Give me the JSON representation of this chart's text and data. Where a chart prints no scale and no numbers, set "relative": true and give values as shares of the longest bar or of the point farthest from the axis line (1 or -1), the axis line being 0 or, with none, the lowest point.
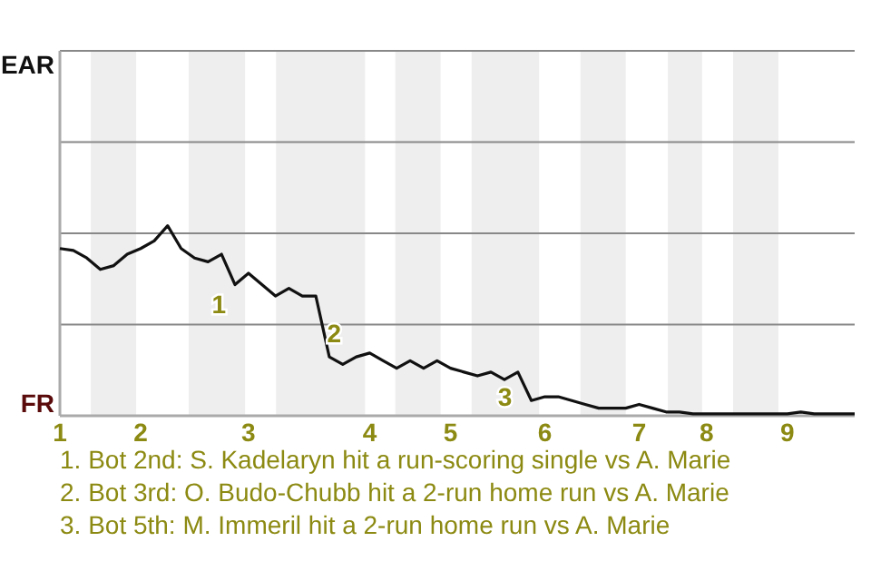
{
  "chart_data": {
    "type": "line",
    "relative": true,
    "marker": "none",
    "line_style": "solid",
    "categories": [
      "1",
      null,
      null,
      null,
      null,
      null,
      "2",
      null,
      null,
      null,
      null,
      null,
      null,
      null,
      "3",
      null,
      null,
      null,
      null,
      null,
      null,
      null,
      null,
      "4",
      null,
      null,
      null,
      null,
      null,
      "5",
      null,
      null,
      null,
      null,
      null,
      null,
      "6",
      null,
      null,
      null,
      null,
      null,
      null,
      "7",
      null,
      null,
      null,
      null,
      "8",
      null,
      null,
      null,
      null,
      null,
      "9",
      null,
      null,
      null,
      null,
      null
    ],
    "series": [
      {
        "color": "#111111",
        "values": [
          0.88,
          0.87,
          0.83,
          0.77,
          0.79,
          0.85,
          0.88,
          0.92,
          1,
          0.88,
          0.83,
          0.81,
          0.85,
          0.69,
          0.75,
          0.69,
          0.63,
          0.67,
          0.63,
          0.63,
          0.31,
          0.27,
          0.31,
          0.33,
          0.29,
          0.25,
          0.29,
          0.25,
          0.29,
          0.25,
          0.23,
          0.21,
          0.23,
          0.19,
          0.23,
          0.08,
          0.1,
          0.1,
          0.08,
          0.06,
          0.04,
          0.04,
          0.04,
          0.06,
          0.04,
          0.02,
          0.02,
          0.01,
          0.01,
          0.01,
          0.01,
          0.01,
          0.01,
          0.01,
          0.01,
          0.02,
          0.01,
          0.01,
          0.01,
          0.01
        ]
      }
    ],
    "ref_lines": [
      {
        "axis": "y",
        "value": 0.48,
        "color": "#888888"
      },
      {
        "axis": "y",
        "value": 0.96,
        "color": "#888888"
      },
      {
        "axis": "y",
        "value": 1.44,
        "color": "#888888"
      },
      {
        "axis": "y",
        "value": 1.92,
        "color": "#888888"
      }
    ],
    "annotations": [
      "EAR",
      "FR",
      "1",
      "2",
      "3",
      "1. Bot 2nd: S. Kadelaryn hit a run-scoring single vs A. Marie",
      "2. Bot 3rd: O. Budo-Chubb hit a 2-run home run vs A. Marie",
      "3. Bot 5th: M. Immeril hit a 2-run home run vs A. Marie"
    ]
  }
}
